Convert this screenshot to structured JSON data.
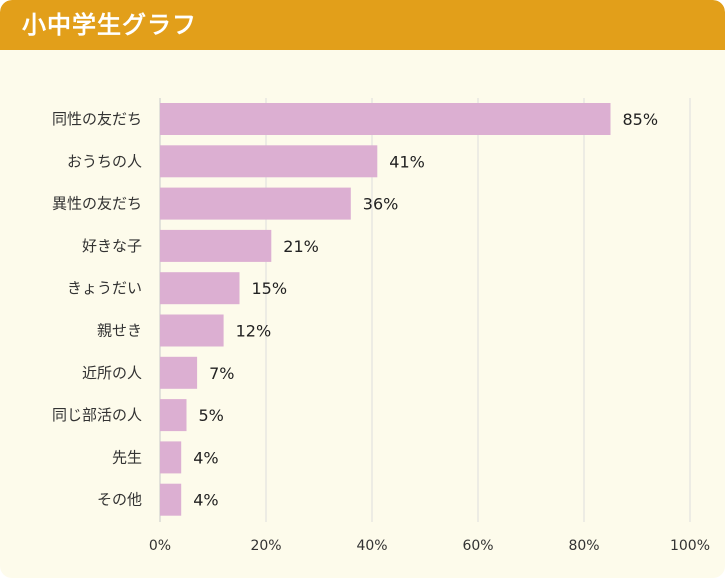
{
  "header": {
    "title": "小中学生グラフ"
  },
  "colors": {
    "header": "#e29f1a",
    "bar": "#dcafd2",
    "background": "#fdfbeb",
    "grid": "#dddddd"
  },
  "chart_data": {
    "type": "bar",
    "orientation": "horizontal",
    "title": "小中学生グラフ",
    "categories": [
      "同性の友だち",
      "おうちの人",
      "異性の友だち",
      "好きな子",
      "きょうだい",
      "親せき",
      "近所の人",
      "同じ部活の人",
      "先生",
      "その他"
    ],
    "values": [
      85,
      41,
      36,
      21,
      15,
      12,
      7,
      5,
      4,
      4
    ],
    "value_labels": [
      "85%",
      "41%",
      "36%",
      "21%",
      "15%",
      "12%",
      "7%",
      "5%",
      "4%",
      "4%"
    ],
    "xlim": [
      0,
      100
    ],
    "xticks": [
      0,
      20,
      40,
      60,
      80,
      100
    ],
    "xtick_labels": [
      "0%",
      "20%",
      "40%",
      "60%",
      "80%",
      "100%"
    ],
    "grid": true,
    "legend": "none"
  }
}
